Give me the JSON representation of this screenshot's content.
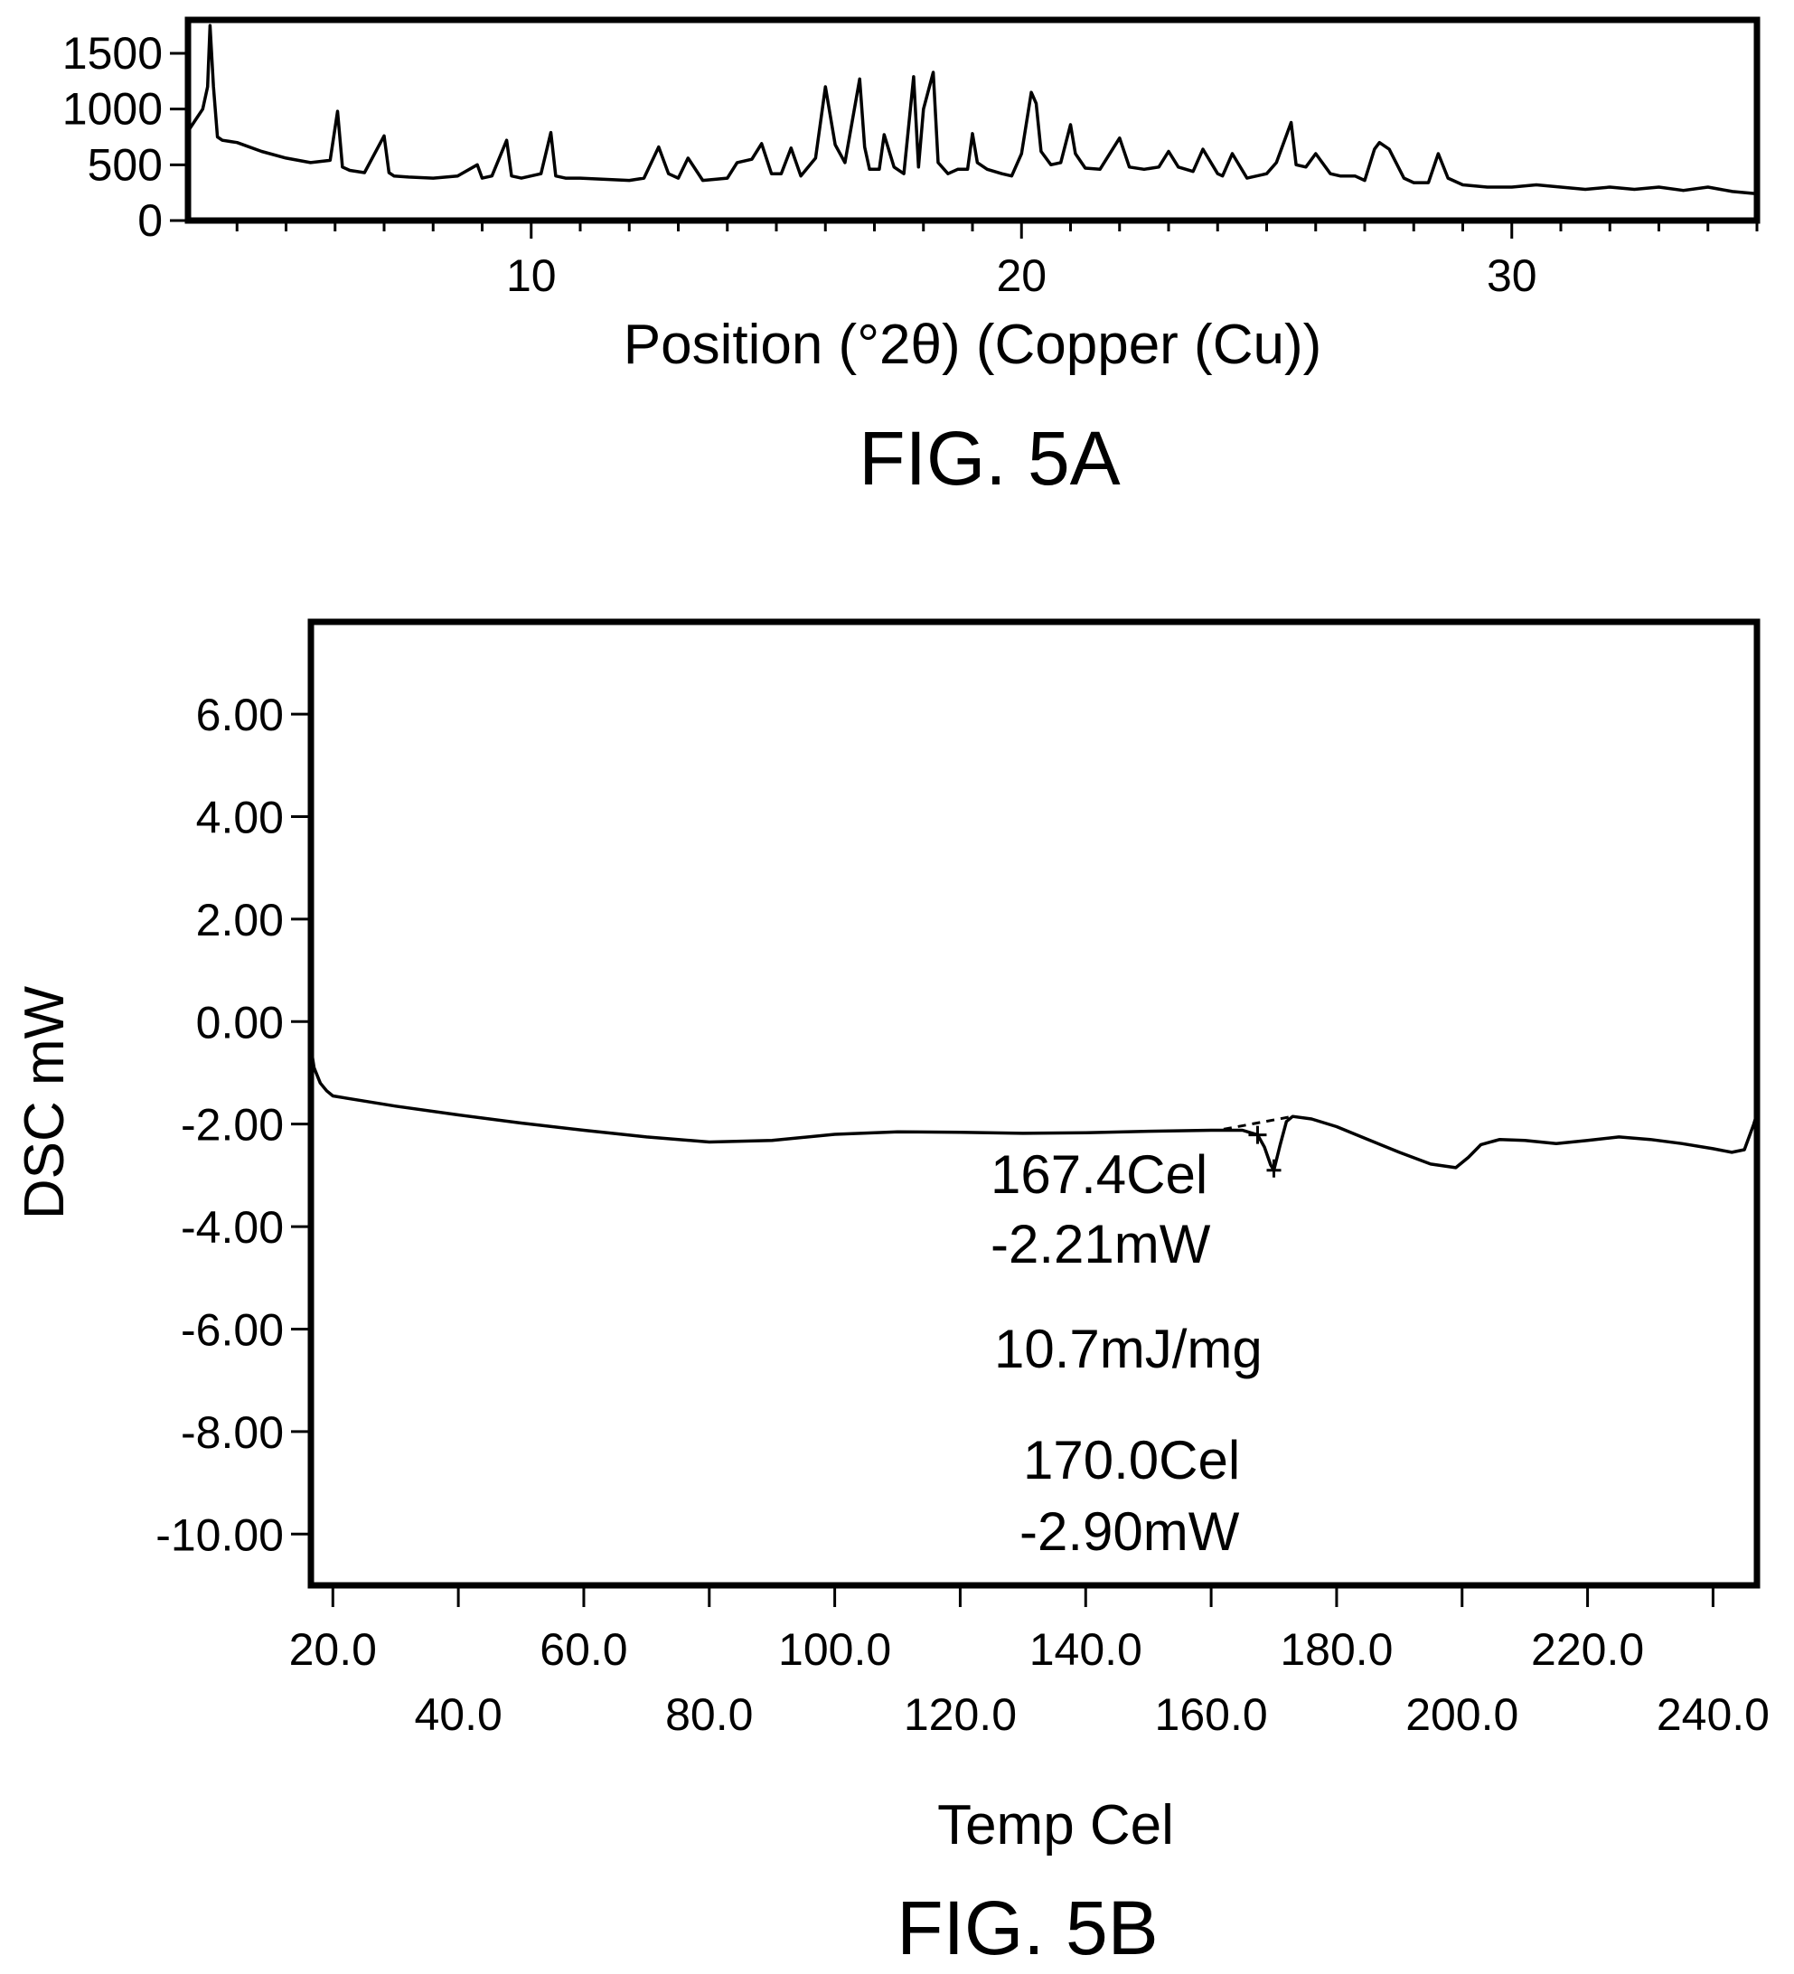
{
  "figures": [
    {
      "caption": "FIG. 5A"
    },
    {
      "caption": "FIG. 5B"
    }
  ],
  "chart_data": [
    {
      "type": "line",
      "title": "",
      "xlabel": "Position (°2θ) (Copper (Cu))",
      "ylabel": "",
      "xlim": [
        3,
        35
      ],
      "ylim": [
        0,
        1800
      ],
      "x_tick_labels": [
        "10",
        "20",
        "30"
      ],
      "y_tick_labels": [
        "1500",
        "1000",
        "500",
        "0"
      ],
      "series": [
        {
          "x": [
            3.0,
            3.15,
            3.3,
            3.4,
            3.45,
            3.52,
            3.6,
            3.7,
            4.0,
            4.5,
            5.0,
            5.5,
            5.9,
            6.05,
            6.15,
            6.3,
            6.6,
            7.0,
            7.1,
            7.2,
            7.5,
            8.0,
            8.5,
            8.9,
            9.0,
            9.2,
            9.5,
            9.6,
            9.8,
            10.2,
            10.4,
            10.5,
            10.7,
            11.0,
            11.5,
            12.0,
            12.3,
            12.6,
            12.8,
            13.0,
            13.2,
            13.5,
            14.0,
            14.2,
            14.5,
            14.7,
            14.9,
            15.1,
            15.3,
            15.5,
            15.8,
            16.0,
            16.2,
            16.4,
            16.7,
            16.8,
            16.9,
            17.1,
            17.2,
            17.4,
            17.6,
            17.8,
            17.9,
            18.0,
            18.2,
            18.3,
            18.5,
            18.7,
            18.9,
            19.0,
            19.1,
            19.3,
            19.6,
            19.8,
            20.0,
            20.2,
            20.3,
            20.4,
            20.6,
            20.8,
            21.0,
            21.1,
            21.3,
            21.6,
            22.0,
            22.2,
            22.5,
            22.8,
            23.0,
            23.2,
            23.5,
            23.7,
            24.0,
            24.1,
            24.3,
            24.6,
            25.0,
            25.2,
            25.5,
            25.6,
            25.8,
            26.0,
            26.3,
            26.5,
            26.8,
            27.0,
            27.2,
            27.3,
            27.5,
            27.8,
            28.0,
            28.3,
            28.5,
            28.7,
            29.0,
            29.5,
            30.0,
            30.5,
            31.0,
            31.5,
            32.0,
            32.5,
            33.0,
            33.5,
            34.0,
            34.5,
            35.0
          ],
          "y": [
            800,
            900,
            1000,
            1200,
            1750,
            1200,
            750,
            720,
            700,
            620,
            560,
            520,
            540,
            980,
            480,
            450,
            430,
            760,
            430,
            400,
            390,
            380,
            400,
            500,
            380,
            400,
            720,
            400,
            380,
            420,
            790,
            400,
            380,
            380,
            370,
            360,
            380,
            660,
            420,
            380,
            560,
            360,
            380,
            520,
            550,
            690,
            420,
            420,
            650,
            400,
            560,
            1200,
            680,
            520,
            1270,
            660,
            460,
            460,
            770,
            480,
            420,
            1290,
            480,
            1000,
            1330,
            520,
            420,
            460,
            460,
            780,
            520,
            460,
            420,
            400,
            600,
            1150,
            1050,
            620,
            500,
            520,
            860,
            600,
            470,
            460,
            740,
            480,
            460,
            480,
            620,
            480,
            440,
            640,
            420,
            400,
            600,
            380,
            420,
            520,
            880,
            500,
            480,
            600,
            420,
            400,
            400,
            360,
            640,
            700,
            640,
            380,
            340,
            340,
            600,
            380,
            320,
            300,
            300,
            320,
            300,
            280,
            300,
            280,
            300,
            270,
            300,
            260,
            240
          ]
        }
      ]
    },
    {
      "type": "line",
      "title": "",
      "xlabel": "Temp Cel",
      "ylabel": "DSC mW",
      "xlim": [
        16.5,
        247
      ],
      "ylim": [
        -11.0,
        7.8
      ],
      "x_tick_labels": [
        "20.0",
        "40.0",
        "60.0",
        "80.0",
        "100.0",
        "120.0",
        "140.0",
        "160.0",
        "180.0",
        "200.0",
        "220.0",
        "240.0"
      ],
      "y_tick_labels": [
        "6.00",
        "4.00",
        "2.00",
        "0.00",
        "-2.00",
        "-4.00",
        "-6.00",
        "-8.00",
        "-10.00"
      ],
      "annotations": [
        {
          "x": 167.4,
          "y": -2.21,
          "lines": [
            "167.4Cel",
            "-2.21mW"
          ]
        },
        {
          "text": "10.7mJ/mg"
        },
        {
          "x": 170.0,
          "y": -2.9,
          "lines": [
            "170.0Cel",
            "-2.90mW"
          ]
        }
      ],
      "series": [
        {
          "x": [
            16.5,
            17.0,
            18.0,
            19.0,
            20.0,
            25.0,
            30.0,
            40.0,
            50.0,
            60.0,
            70.0,
            80.0,
            90.0,
            100.0,
            110.0,
            120.0,
            130.0,
            140.0,
            150.0,
            160.0,
            165.0,
            167.4,
            168.5,
            169.5,
            170.0,
            171.0,
            172.0,
            173.0,
            176.0,
            180.0,
            185.0,
            190.0,
            195.0,
            199.0,
            201.0,
            203.0,
            206.0,
            210.0,
            215.0,
            220.0,
            225.0,
            230.0,
            235.0,
            240.0,
            243.0,
            245.0,
            246.5,
            247.0
          ],
          "y": [
            -0.5,
            -0.9,
            -1.2,
            -1.35,
            -1.45,
            -1.55,
            -1.65,
            -1.82,
            -1.98,
            -2.12,
            -2.25,
            -2.35,
            -2.32,
            -2.2,
            -2.15,
            -2.16,
            -2.18,
            -2.17,
            -2.14,
            -2.12,
            -2.12,
            -2.21,
            -2.45,
            -2.8,
            -2.9,
            -2.4,
            -1.95,
            -1.85,
            -1.9,
            -2.05,
            -2.3,
            -2.55,
            -2.78,
            -2.85,
            -2.65,
            -2.4,
            -2.3,
            -2.32,
            -2.38,
            -2.32,
            -2.25,
            -2.3,
            -2.38,
            -2.48,
            -2.55,
            -2.5,
            -2.0,
            -1.8
          ]
        }
      ]
    }
  ]
}
